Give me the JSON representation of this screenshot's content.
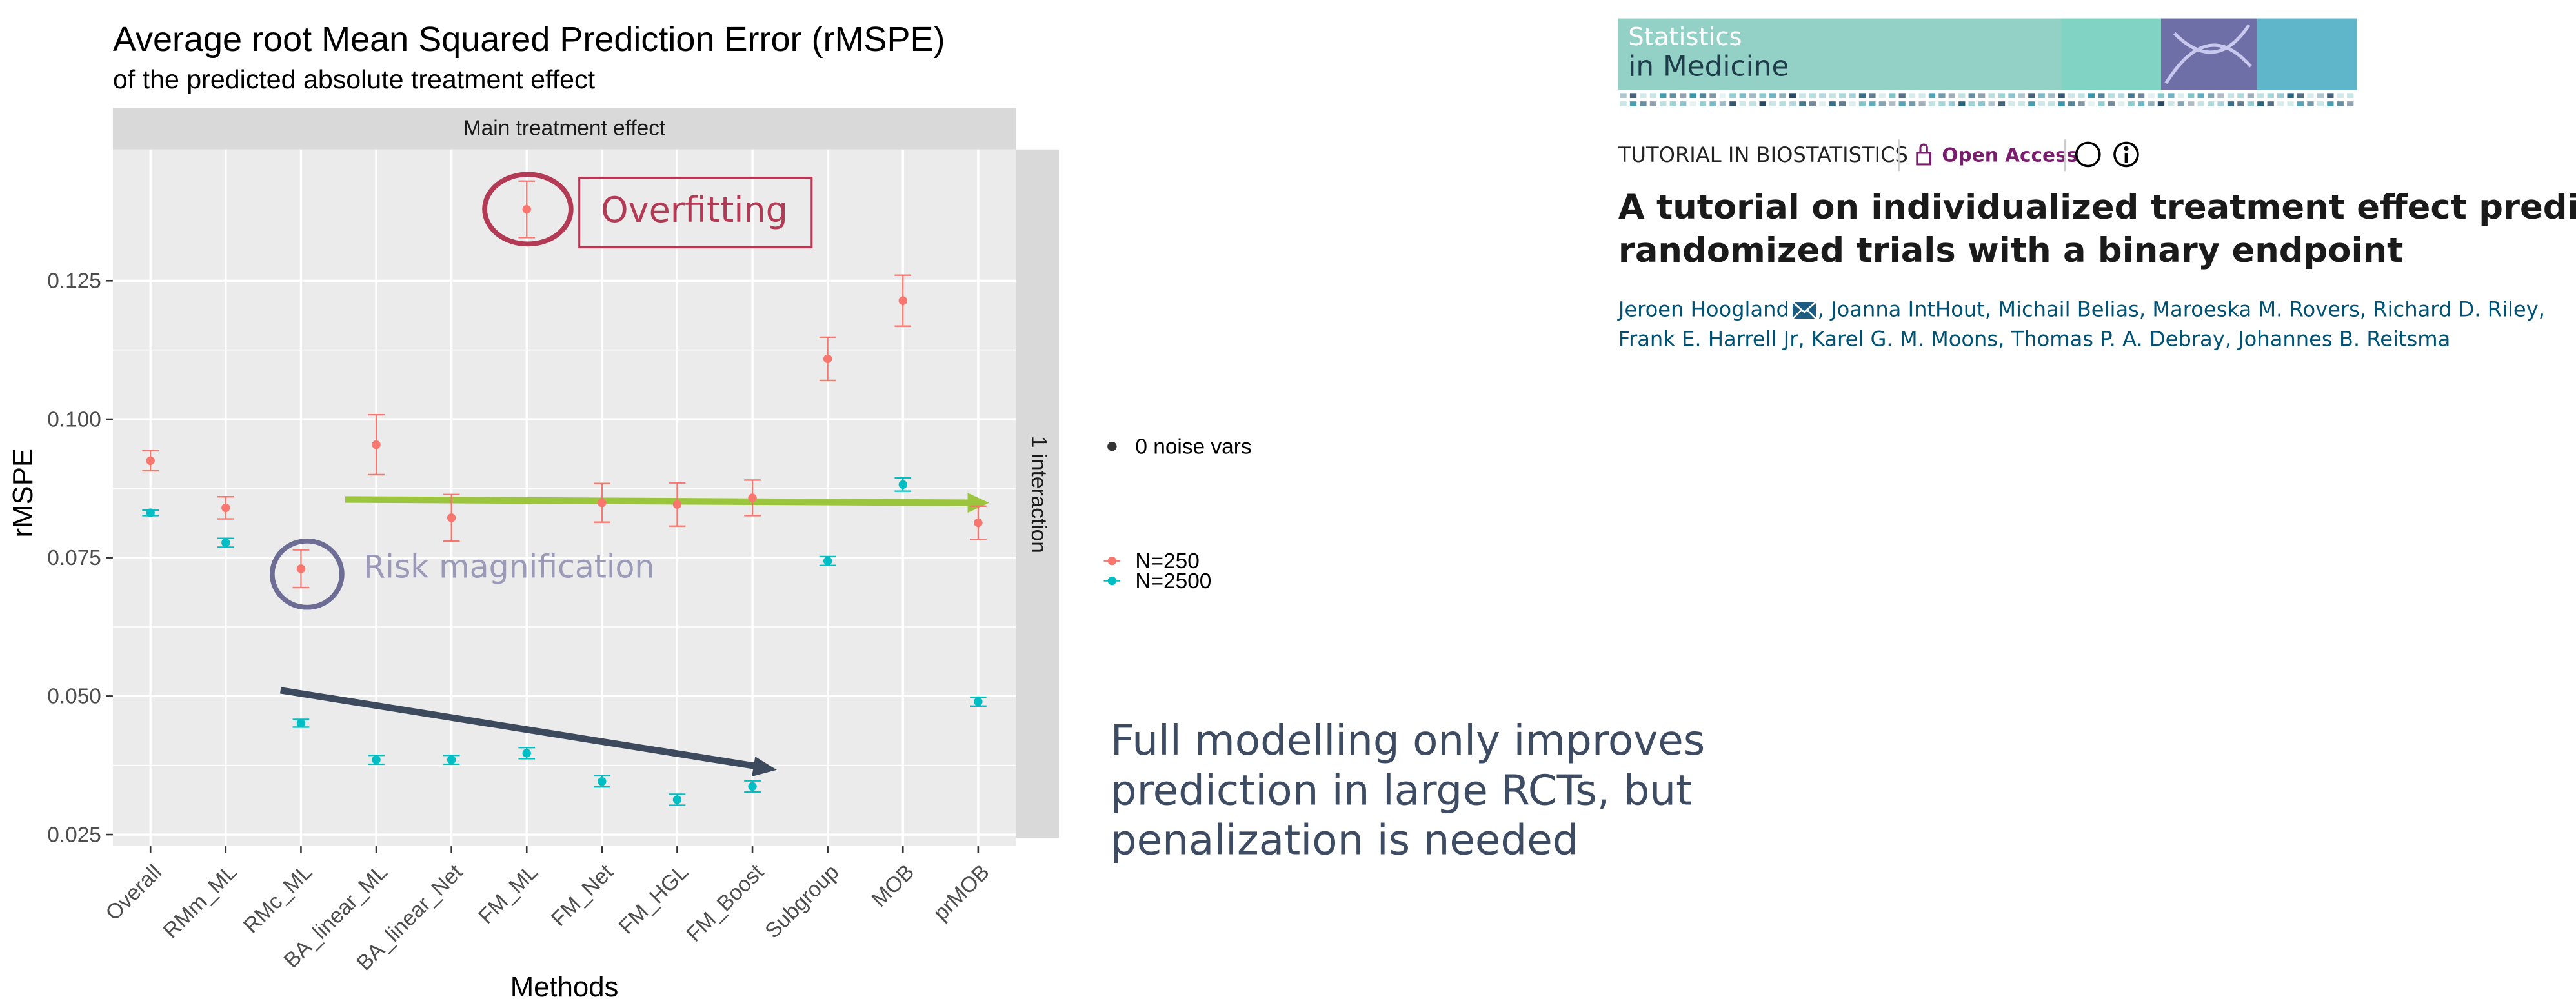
{
  "chart_data": {
    "type": "errorbar",
    "title": "Average root Mean Squared Prediction Error (rMSPE)",
    "subtitle": "of the predicted absolute treatment effect",
    "facet_top": "Main treatment effect",
    "facet_right": "1 interaction",
    "x_label": "Methods",
    "y_label": "rMSPE",
    "categories": [
      "Overall",
      "RMm_ML",
      "RMc_ML",
      "BA_linear_ML",
      "BA_linear_Net",
      "FM_ML",
      "FM_Net",
      "FM_HGL",
      "FM_Boost",
      "Subgroup",
      "MOB",
      "prMOB"
    ],
    "series": [
      {
        "name": "N=250",
        "color": "#F8766D",
        "values": [
          0.0925,
          0.084,
          0.073,
          0.0954,
          0.0822,
          0.1379,
          0.0849,
          0.0846,
          0.0858,
          0.1109,
          0.1214,
          0.0813
        ],
        "errors": [
          0.0018,
          0.002,
          0.0034,
          0.0054,
          0.0042,
          0.0051,
          0.0035,
          0.0039,
          0.0032,
          0.0039,
          0.0046,
          0.003
        ]
      },
      {
        "name": "N=2500",
        "color": "#00BFC4",
        "values": [
          0.0831,
          0.0777,
          0.0451,
          0.0385,
          0.0385,
          0.0397,
          0.0346,
          0.0313,
          0.0337,
          0.0744,
          0.0882,
          0.049
        ],
        "errors": [
          0.0005,
          0.0008,
          0.0007,
          0.0008,
          0.0008,
          0.001,
          0.001,
          0.001,
          0.001,
          0.0008,
          0.0012,
          0.0008
        ]
      }
    ],
    "shape_legend": "0 noise vars",
    "ylim": [
      0.0229,
      0.1487
    ],
    "yticks": [
      0.025,
      {
        "value": 0.05,
        "label": "0.050"
      },
      0.075,
      {
        "value": 0.1,
        "label": "0.100"
      },
      0.125
    ],
    "grid": true,
    "annotations": [
      "Overfitting",
      "Risk magnification"
    ]
  },
  "journal": {
    "name_line1": "Statistics",
    "name_line2": "in Medicine",
    "section": "TUTORIAL IN BIOSTATISTICS",
    "access": "Open Access",
    "title_lines": [
      "A tutorial on individualized treatment effect prediction from",
      "randomized trials with a binary endpoint"
    ],
    "authors_line1": [
      "Jeroen Hoogland",
      ", Joanna IntHout, Michail Belias, Maroeska M. Rovers, Richard D. Riley,"
    ],
    "authors_line2": "Frank E. Harrell Jr, Karel G. M. Moons, Thomas P. A. Debray, Johannes B. Reitsma"
  },
  "takeaway_lines": [
    "Full modelling only improves",
    "prediction in large RCTs, but",
    "penalization is needed"
  ]
}
